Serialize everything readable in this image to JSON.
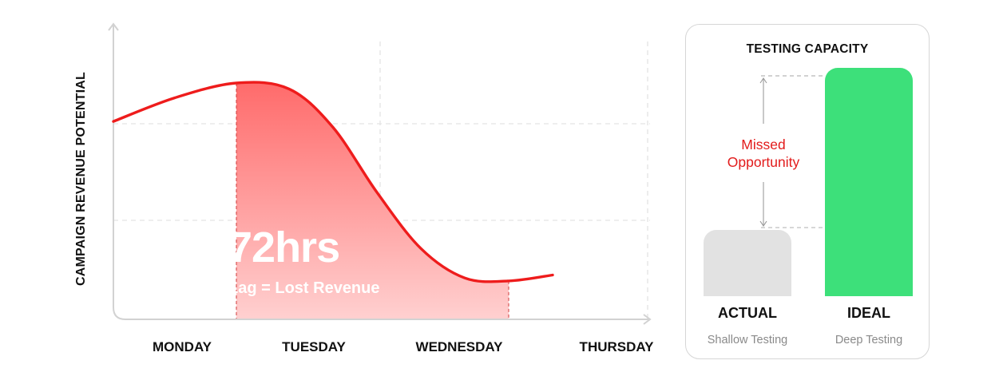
{
  "chart_data": [
    {
      "type": "area",
      "ylabel": "CAMPAIGN REVENUE POTENTIAL",
      "categories": [
        "MONDAY",
        "TUESDAY",
        "WEDNESDAY",
        "THURSDAY"
      ],
      "grid": true,
      "series": [
        {
          "x": [
            0.0,
            0.35,
            0.7,
            1.0,
            1.25,
            1.5,
            1.75,
            2.0,
            2.25,
            2.5
          ],
          "y": [
            0.67,
            0.75,
            0.8,
            0.78,
            0.65,
            0.43,
            0.24,
            0.14,
            0.13,
            0.15
          ]
        }
      ],
      "highlight": {
        "x_start": 0.7,
        "x_end": 2.25,
        "value": "72hrs",
        "caption": "Lag = Lost Revenue"
      },
      "colors": {
        "line": "#ee1c1c",
        "fill_top": "#ff6b6b",
        "fill_bottom": "#ffd0d0"
      }
    },
    {
      "type": "bar",
      "title": "TESTING CAPACITY",
      "categories": [
        "ACTUAL",
        "IDEAL"
      ],
      "subtitles": [
        "Shallow Testing",
        "Deep Testing"
      ],
      "values": [
        0.29,
        1.0
      ],
      "annotation": "Missed Opportunity",
      "colors": {
        "actual": "#e2e2e2",
        "ideal": "#3de07a",
        "annotation": "#e21b1b"
      }
    }
  ]
}
